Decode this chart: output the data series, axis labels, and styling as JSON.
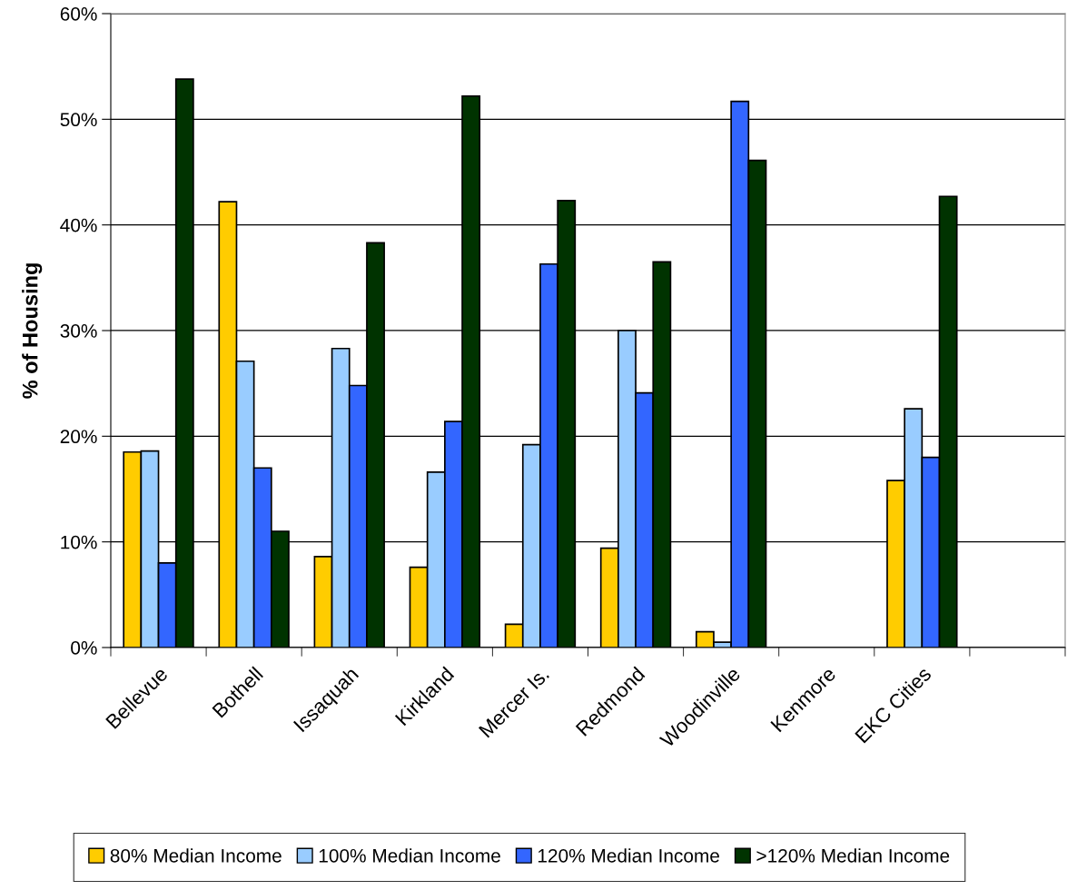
{
  "chart_data": {
    "type": "bar",
    "ylabel": "% of Housing",
    "categories": [
      "Bellevue",
      "Bothell",
      "Issaquah",
      "Kirkland",
      "Mercer Is.",
      "Redmond",
      "Woodinville",
      "Kenmore",
      "EKC Cities",
      null
    ],
    "series": [
      {
        "name": "80% Median Income",
        "color": "#ffcc00",
        "values": [
          18.5,
          42.2,
          8.6,
          7.6,
          2.2,
          9.4,
          1.5,
          null,
          15.8,
          null
        ]
      },
      {
        "name": "100% Median Income",
        "color": "#99ccff",
        "values": [
          18.6,
          27.1,
          28.3,
          16.6,
          19.2,
          30.0,
          0.5,
          null,
          22.6,
          null
        ]
      },
      {
        "name": "120% Median Income",
        "color": "#3366ff",
        "values": [
          8.0,
          17.0,
          24.8,
          21.4,
          36.3,
          24.1,
          51.7,
          null,
          18.0,
          null
        ]
      },
      {
        "name": ">120% Median Income",
        "color": "#003300",
        "values": [
          53.8,
          11.0,
          38.3,
          52.2,
          42.3,
          36.5,
          46.1,
          null,
          42.7,
          null
        ]
      }
    ],
    "ylim": [
      0,
      60
    ],
    "yticks": [
      {
        "value": 0,
        "label": "0%"
      },
      {
        "value": 10,
        "label": "10%"
      },
      {
        "value": 20,
        "label": "20%"
      },
      {
        "value": 30,
        "label": "30%"
      },
      {
        "value": 40,
        "label": "40%"
      },
      {
        "value": 50,
        "label": "50%"
      },
      {
        "value": 60,
        "label": "60%"
      }
    ],
    "grid": "y",
    "legend": "bottom"
  }
}
